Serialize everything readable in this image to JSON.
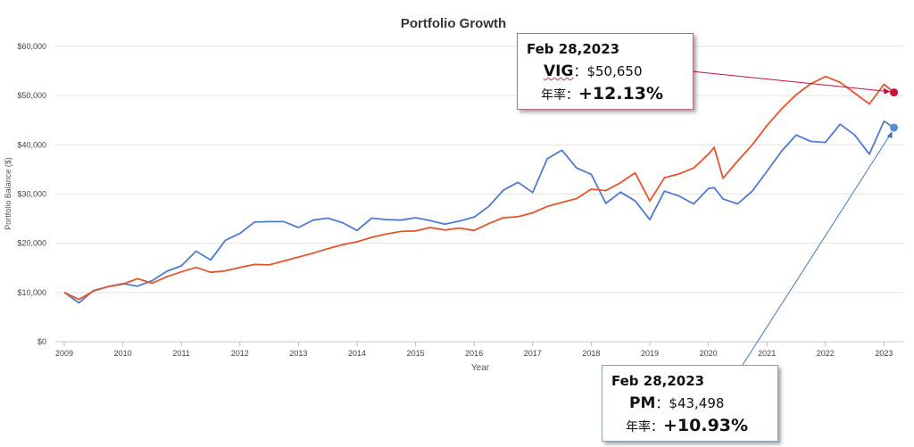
{
  "chart_data": {
    "type": "line",
    "title": "Portfolio Growth",
    "xlabel": "Year",
    "ylabel": "Portfolio Balance ($)",
    "ylim": [
      0,
      60000
    ],
    "xlim": [
      2009.0,
      2023.25
    ],
    "yticks": [
      "$0",
      "$10,000",
      "$20,000",
      "$30,000",
      "$40,000",
      "$50,000",
      "$60,000"
    ],
    "xticks": [
      "2009",
      "2010",
      "2011",
      "2012",
      "2013",
      "2014",
      "2015",
      "2016",
      "2017",
      "2018",
      "2019",
      "2020",
      "2021",
      "2022",
      "2023"
    ],
    "grid": true,
    "colors": {
      "VIG": "#e8532b",
      "PM": "#4d7bd4",
      "vig_arrow": "#c8103e",
      "pm_arrow": "#3d7bc0"
    },
    "series": [
      {
        "name": "VIG",
        "x": [
          2009.0,
          2009.25,
          2009.5,
          2009.75,
          2010.0,
          2010.25,
          2010.5,
          2010.75,
          2011.0,
          2011.25,
          2011.5,
          2011.75,
          2012.0,
          2012.25,
          2012.5,
          2012.75,
          2013.0,
          2013.25,
          2013.5,
          2013.75,
          2014.0,
          2014.25,
          2014.5,
          2014.75,
          2015.0,
          2015.25,
          2015.5,
          2015.75,
          2016.0,
          2016.25,
          2016.5,
          2016.75,
          2017.0,
          2017.25,
          2017.5,
          2017.75,
          2018.0,
          2018.25,
          2018.5,
          2018.75,
          2019.0,
          2019.25,
          2019.5,
          2019.75,
          2020.0,
          2020.1,
          2020.25,
          2020.5,
          2020.75,
          2021.0,
          2021.25,
          2021.5,
          2021.75,
          2022.0,
          2022.25,
          2022.5,
          2022.75,
          2023.0,
          2023.17
        ],
        "y": [
          10000,
          8600,
          10300,
          11200,
          11700,
          12800,
          11900,
          13200,
          14200,
          15100,
          14100,
          14400,
          15100,
          15700,
          15600,
          16400,
          17200,
          18000,
          18900,
          19700,
          20300,
          21200,
          21900,
          22400,
          22500,
          23200,
          22700,
          23100,
          22600,
          24000,
          25200,
          25400,
          26200,
          27500,
          28300,
          29100,
          31000,
          30700,
          32300,
          34300,
          28600,
          33300,
          34100,
          35300,
          38100,
          39500,
          33200,
          36700,
          40000,
          43900,
          47300,
          50200,
          52400,
          53900,
          52700,
          50500,
          48300,
          52300,
          50650
        ]
      },
      {
        "name": "PM",
        "x": [
          2009.0,
          2009.25,
          2009.5,
          2009.75,
          2010.0,
          2010.25,
          2010.5,
          2010.75,
          2011.0,
          2011.25,
          2011.5,
          2011.75,
          2012.0,
          2012.25,
          2012.5,
          2012.75,
          2013.0,
          2013.25,
          2013.5,
          2013.75,
          2014.0,
          2014.25,
          2014.5,
          2014.75,
          2015.0,
          2015.25,
          2015.5,
          2015.75,
          2016.0,
          2016.25,
          2016.5,
          2016.75,
          2017.0,
          2017.25,
          2017.5,
          2017.75,
          2018.0,
          2018.25,
          2018.5,
          2018.75,
          2019.0,
          2019.25,
          2019.5,
          2019.75,
          2020.0,
          2020.1,
          2020.25,
          2020.5,
          2020.75,
          2021.0,
          2021.25,
          2021.5,
          2021.75,
          2022.0,
          2022.25,
          2022.5,
          2022.75,
          2023.0,
          2023.17
        ],
        "y": [
          10000,
          7900,
          10400,
          11200,
          11800,
          11300,
          12400,
          14300,
          15400,
          18400,
          16600,
          20600,
          22000,
          24300,
          24400,
          24400,
          23200,
          24700,
          25100,
          24200,
          22600,
          25100,
          24800,
          24700,
          25200,
          24600,
          23900,
          24500,
          25300,
          27500,
          30800,
          32400,
          30300,
          37200,
          38900,
          35300,
          34000,
          28100,
          30400,
          28600,
          24800,
          30600,
          29600,
          28000,
          31100,
          31300,
          29000,
          28000,
          30600,
          34600,
          38700,
          42000,
          40700,
          40500,
          44200,
          42000,
          38100,
          44800,
          43498
        ]
      }
    ],
    "annotations": [
      {
        "date": "Feb 28,2023",
        "name": "VIG",
        "value_label": "$50,650",
        "rate_label": "年率",
        "sep": "：",
        "rate": "+12.13%"
      },
      {
        "date": "Feb 28,2023",
        "name": "PM",
        "value_label": "$43,498",
        "rate_label": "年率",
        "sep": "：",
        "rate": "+10.93%"
      }
    ]
  }
}
